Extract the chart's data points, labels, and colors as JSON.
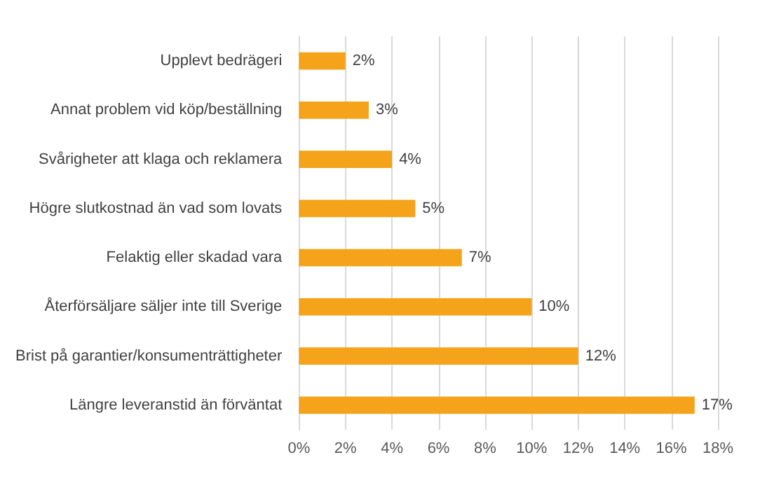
{
  "chart_data": {
    "type": "bar",
    "orientation": "horizontal",
    "categories": [
      "Upplevt bedrägeri",
      "Annat problem vid köp/beställning",
      "Svårigheter att klaga och reklamera",
      "Högre slutkostnad än vad som lovats",
      "Felaktig eller skadad vara",
      "Återförsäljare säljer inte till Sverige",
      "Brist på garantier/konsumenträttigheter",
      "Längre leveranstid än förväntat"
    ],
    "values": [
      2,
      3,
      4,
      5,
      7,
      10,
      12,
      17
    ],
    "value_labels": [
      "2%",
      "3%",
      "4%",
      "5%",
      "7%",
      "10%",
      "12%",
      "17%"
    ],
    "color": "#f5a31b",
    "xlim": [
      0,
      18
    ],
    "xticks": [
      {
        "value": 0,
        "label": "0%"
      },
      {
        "value": 2,
        "label": "2%"
      },
      {
        "value": 4,
        "label": "4%"
      },
      {
        "value": 6,
        "label": "6%"
      },
      {
        "value": 8,
        "label": "8%"
      },
      {
        "value": 10,
        "label": "10%"
      },
      {
        "value": 12,
        "label": "12%"
      },
      {
        "value": 14,
        "label": "14%"
      },
      {
        "value": 16,
        "label": "16%"
      },
      {
        "value": 18,
        "label": "18%"
      }
    ],
    "grid": "x"
  }
}
